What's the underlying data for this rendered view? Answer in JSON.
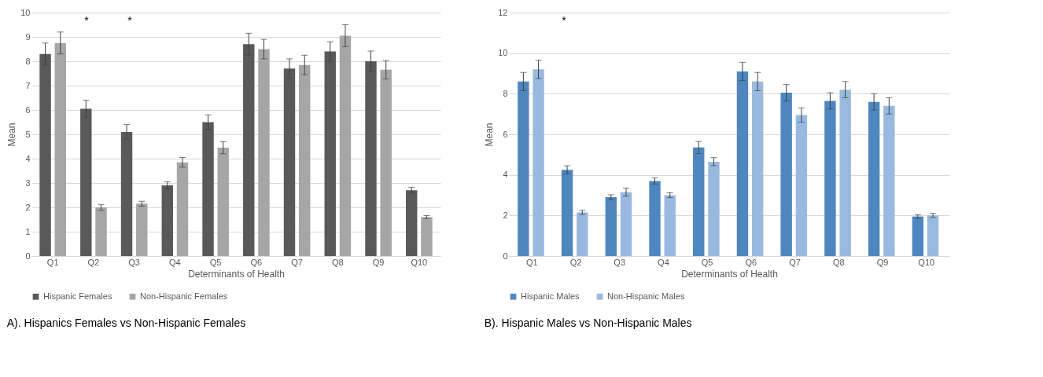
{
  "chart_data": [
    {
      "type": "bar",
      "title": "A). Hispanics Females vs Non-Hispanic Females",
      "xlabel": "Determinants of Health",
      "ylabel": "Mean",
      "categories": [
        "Q1",
        "Q2",
        "Q3",
        "Q4",
        "Q5",
        "Q6",
        "Q7",
        "Q8",
        "Q9",
        "Q10"
      ],
      "ylim": [
        0,
        10
      ],
      "yticks": [
        0,
        1,
        2,
        3,
        4,
        5,
        6,
        7,
        8,
        9,
        10
      ],
      "grid": "y",
      "legend": "bottom",
      "series": [
        {
          "name": "Hispanic Females",
          "color": "#595959",
          "values": [
            8.3,
            6.05,
            5.1,
            2.9,
            5.5,
            8.7,
            7.7,
            8.4,
            8.0,
            2.7
          ],
          "errors": [
            0.45,
            0.35,
            0.3,
            0.15,
            0.3,
            0.45,
            0.4,
            0.4,
            0.42,
            0.12
          ]
        },
        {
          "name": "Non-Hispanic Females",
          "color": "#a6a6a6",
          "values": [
            8.75,
            2.0,
            2.15,
            3.85,
            4.45,
            8.5,
            7.85,
            9.05,
            7.65,
            1.6
          ],
          "errors": [
            0.45,
            0.12,
            0.1,
            0.2,
            0.25,
            0.4,
            0.4,
            0.45,
            0.38,
            0.06
          ]
        }
      ],
      "annotations": [
        "*",
        "*"
      ]
    },
    {
      "type": "bar",
      "title": "B). Hispanic Males vs Non-Hispanic Males",
      "xlabel": "Determinants of Health",
      "ylabel": "Mean",
      "categories": [
        "Q1",
        "Q2",
        "Q3",
        "Q4",
        "Q5",
        "Q6",
        "Q7",
        "Q8",
        "Q9",
        "Q10"
      ],
      "ylim": [
        0,
        12
      ],
      "yticks": [
        0,
        2,
        4,
        6,
        8,
        10,
        12
      ],
      "grid": "y",
      "legend": "bottom",
      "series": [
        {
          "name": "Hispanic Males",
          "color": "#4e87c0",
          "values": [
            8.6,
            4.25,
            2.9,
            3.7,
            5.35,
            9.1,
            8.05,
            7.65,
            7.6,
            1.95
          ],
          "errors": [
            0.45,
            0.2,
            0.12,
            0.15,
            0.3,
            0.45,
            0.4,
            0.4,
            0.4,
            0.08
          ]
        },
        {
          "name": "Non-Hispanic Males",
          "color": "#9ab9e0",
          "values": [
            9.2,
            2.15,
            3.15,
            3.0,
            4.65,
            8.6,
            6.95,
            8.2,
            7.4,
            2.0
          ],
          "errors": [
            0.45,
            0.1,
            0.2,
            0.12,
            0.2,
            0.45,
            0.35,
            0.4,
            0.4,
            0.1
          ]
        }
      ],
      "annotations": [
        "*"
      ]
    }
  ]
}
